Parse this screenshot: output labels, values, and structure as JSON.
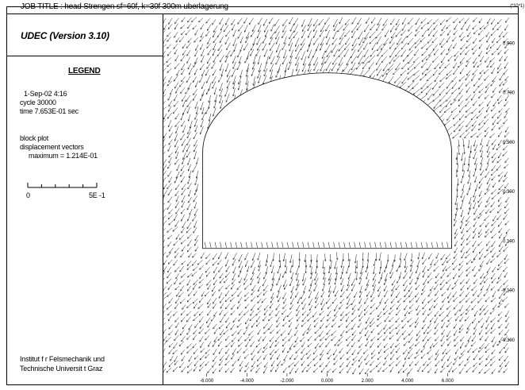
{
  "header": {
    "job_title": "JOB TITLE : head Strengen sf=60f, k=30f  300m uberlagerung",
    "scale_exponent": "(*10^1)"
  },
  "sidebar": {
    "app_title": "UDEC (Version 3.10)",
    "legend_heading": "LEGEND",
    "date": "1-Sep-02   4:16",
    "cycle": "cycle    30000",
    "time": "time    7.653E-01 sec",
    "plot_type": "block plot",
    "vector_label": "displacement vectors",
    "vector_max": "maximum =     1.214E-01",
    "scale_bar": {
      "min_label": "0",
      "max_label": "5E -1"
    },
    "institute_line1": "Institut f r Felsmechanik und",
    "institute_line2": "Technische Universit t Graz"
  },
  "plot": {
    "x_axis": {
      "tick_labels": [
        "-6.000",
        "-4.000",
        "-2.000",
        "0.000",
        "2.000",
        "4.000",
        "6.000"
      ],
      "range": [
        -8.2,
        9.5
      ]
    },
    "y_axis": {
      "tick_labels": [
        "0.900",
        "0.700",
        "0.500",
        "0.300",
        "0.100",
        "-0.100",
        "-0.300"
      ],
      "range": [
        -0.48,
        1.02
      ]
    },
    "excavation": {
      "shape": "horseshoe tunnel (semicircular crown, flat invert)",
      "crown_center_x": 0.0,
      "crown_radius": 6.2,
      "spring_line_y": 0.46,
      "invert_y": 0.07,
      "invert_x_range": [
        -6.2,
        6.2
      ]
    },
    "vector_field": {
      "description": "displacement vectors, directed down-left overall, converging toward the excavation",
      "color": "#000000"
    }
  }
}
